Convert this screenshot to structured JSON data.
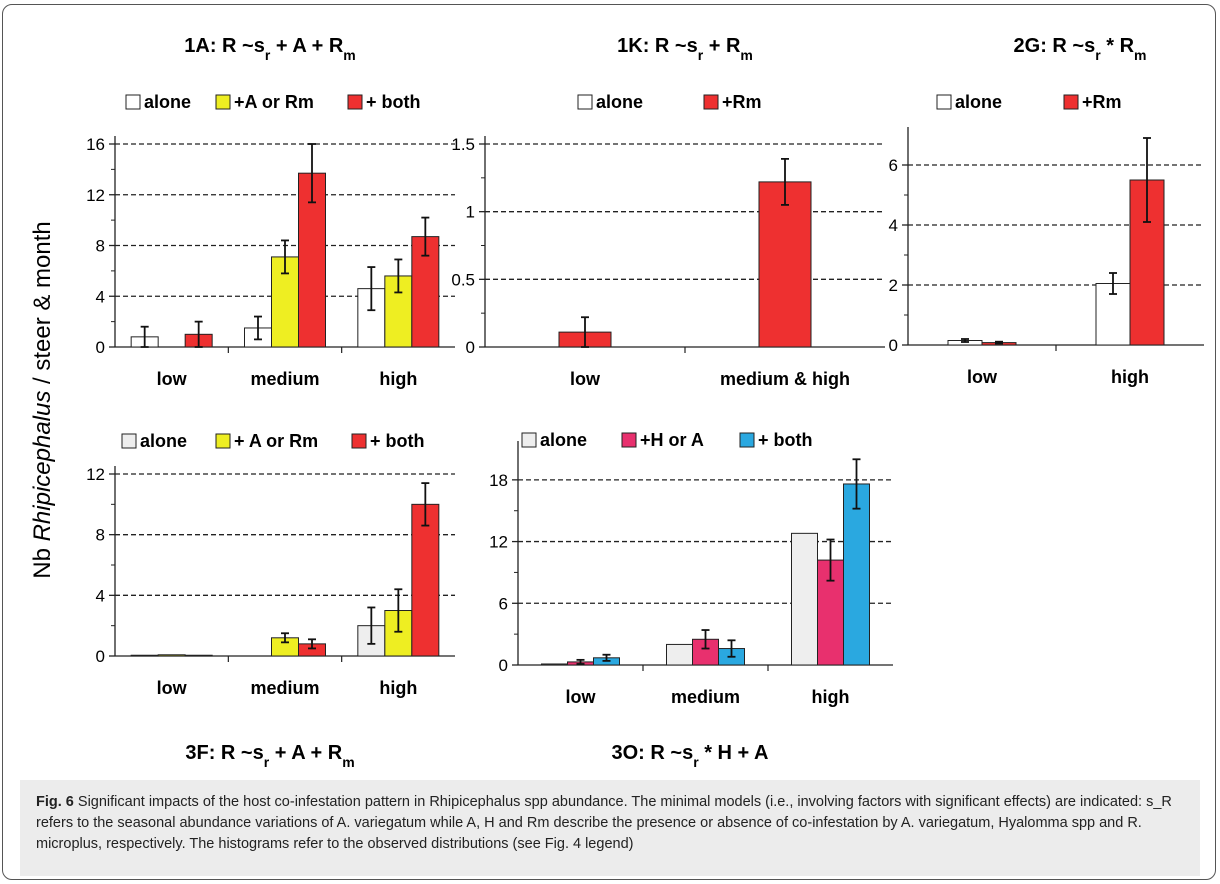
{
  "y_axis_label": {
    "prefix": "Nb ",
    "genus": "Rhipicephalus",
    "suffix": "  /  steer & month"
  },
  "caption": {
    "label": "Fig. 6",
    "text": " Significant impacts of the host co-infestation pattern in Rhipicephalus spp abundance. The minimal models (i.e., involving factors with significant effects) are indicated: s_R refers to the seasonal abundance variations of A. variegatum while A, H and Rm describe the presence or absence of co-infestation by A. variegatum, Hyalomma spp and R. microplus, respectively. The histograms refer to the observed distributions (see Fig. 4 legend)"
  },
  "colors": {
    "white": "#ffffff",
    "light_grey": "#eeeeee",
    "yellow": "#eeee22",
    "red": "#ee3030",
    "pink": "#e8306e",
    "blue": "#2aa8e0",
    "outline": "#222222"
  },
  "chart_data": [
    {
      "id": "1A",
      "type": "bar",
      "title": "1A: R ~s_r + A + R_m",
      "categories": [
        "low",
        "medium",
        "high"
      ],
      "ylim": [
        0,
        16
      ],
      "yticks": [
        0,
        4,
        8,
        12,
        16
      ],
      "grid": "dashed",
      "legend": "top",
      "series": [
        {
          "name": "alone",
          "color": "#ffffff",
          "values": [
            0.8,
            1.5,
            4.6
          ],
          "errors": [
            0.8,
            0.9,
            1.7
          ]
        },
        {
          "name": "+A or Rm",
          "color": "#eeee22",
          "values": [
            null,
            7.1,
            5.6
          ],
          "errors": [
            null,
            1.3,
            1.3
          ]
        },
        {
          "name": "+ both",
          "color": "#ee3030",
          "values": [
            1.0,
            13.7,
            8.7
          ],
          "errors": [
            1.0,
            2.3,
            1.5
          ]
        }
      ]
    },
    {
      "id": "1K",
      "type": "bar",
      "title": "1K: R ~s_r + R_m",
      "categories": [
        "low",
        "medium & high"
      ],
      "ylim": [
        0,
        1.5
      ],
      "yticks": [
        0,
        0.5,
        1,
        1.5
      ],
      "grid": "dashed",
      "legend": "top",
      "series": [
        {
          "name": "alone",
          "color": "#ffffff",
          "values": [
            null,
            null
          ],
          "errors": [
            null,
            null
          ]
        },
        {
          "name": "+Rm",
          "color": "#ee3030",
          "values": [
            0.11,
            1.22
          ],
          "errors": [
            0.11,
            0.17
          ]
        }
      ]
    },
    {
      "id": "2G",
      "type": "bar",
      "title": "2G: R ~s_r * R_m",
      "categories": [
        "low",
        "high"
      ],
      "ylim": [
        0,
        7
      ],
      "yticks": [
        0,
        2,
        4,
        6
      ],
      "grid": "dashed",
      "legend": "top",
      "series": [
        {
          "name": "alone",
          "color": "#ffffff",
          "values": [
            0.15,
            2.05
          ],
          "errors": [
            0.05,
            0.35
          ]
        },
        {
          "name": "+Rm",
          "color": "#ee3030",
          "values": [
            0.08,
            5.5
          ],
          "errors": [
            0.03,
            1.4
          ]
        }
      ]
    },
    {
      "id": "3F",
      "type": "bar",
      "title": "3F: R ~s_r + A + R_m",
      "categories": [
        "low",
        "medium",
        "high"
      ],
      "ylim": [
        0,
        12
      ],
      "yticks": [
        0,
        4,
        8,
        12
      ],
      "grid": "dashed",
      "legend": "top",
      "series": [
        {
          "name": "alone",
          "color": "#eeeeee",
          "values": [
            0.05,
            null,
            2.0
          ],
          "errors": [
            null,
            null,
            1.2
          ]
        },
        {
          "name": "+ A or Rm",
          "color": "#eeee22",
          "values": [
            0.08,
            1.2,
            3.0
          ],
          "errors": [
            null,
            0.3,
            1.4
          ]
        },
        {
          "name": "+ both",
          "color": "#ee3030",
          "values": [
            0.05,
            0.8,
            10.0
          ],
          "errors": [
            null,
            0.3,
            1.4
          ]
        }
      ]
    },
    {
      "id": "3O",
      "type": "bar",
      "title": "3O: R ~s_r * H + A",
      "categories": [
        "low",
        "medium",
        "high"
      ],
      "ylim": [
        0,
        21
      ],
      "yticks": [
        0,
        6,
        12,
        18
      ],
      "grid": "dashed",
      "legend": "top",
      "series": [
        {
          "name": "alone",
          "color": "#eeeeee",
          "values": [
            0.1,
            2.0,
            12.8
          ],
          "errors": [
            null,
            null,
            null
          ]
        },
        {
          "name": "+H or A",
          "color": "#e8306e",
          "values": [
            0.3,
            2.5,
            10.2
          ],
          "errors": [
            0.2,
            0.9,
            2.0
          ]
        },
        {
          "name": "+ both",
          "color": "#2aa8e0",
          "values": [
            0.7,
            1.6,
            17.6
          ],
          "errors": [
            0.3,
            0.8,
            2.4
          ]
        }
      ]
    }
  ]
}
